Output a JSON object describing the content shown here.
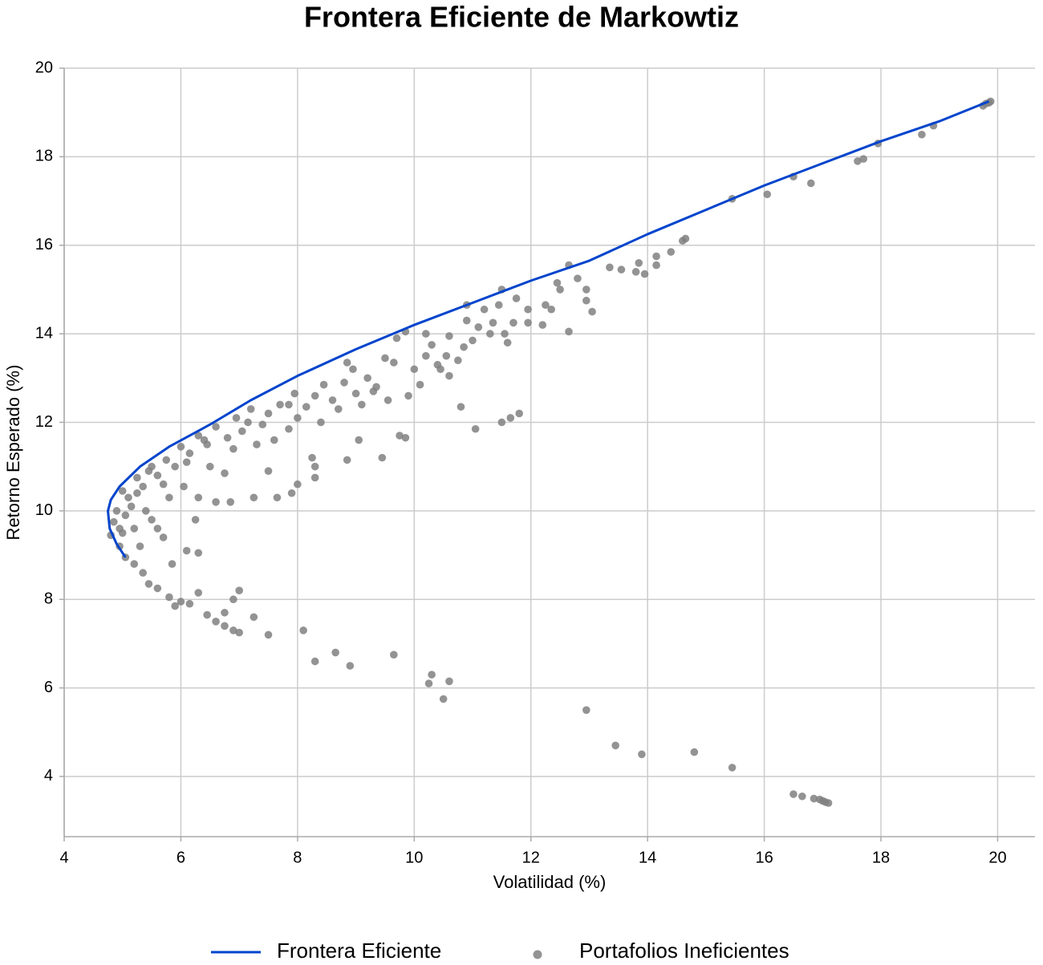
{
  "chart_data": {
    "type": "scatter",
    "title": "Frontera Eficiente de Markowtiz",
    "x_label": "Volatilidad (%)",
    "y_label": "Retorno Esperado (%)",
    "xlim": [
      4,
      20.64
    ],
    "ylim": [
      2.64,
      20
    ],
    "xticks": [
      4,
      6,
      8,
      10,
      12,
      14,
      16,
      18,
      20
    ],
    "yticks": [
      4,
      6,
      8,
      10,
      12,
      14,
      16,
      18,
      20
    ],
    "grid": true,
    "legend": "bottom",
    "series": [
      {
        "name": "Frontera Eficiente",
        "type": "line",
        "color": "#0044cc",
        "x": [
          5.05,
          4.9,
          4.78,
          4.75,
          4.8,
          4.95,
          5.3,
          5.8,
          6.5,
          7.2,
          8,
          9,
          10,
          11,
          12,
          13,
          14,
          15,
          16,
          17,
          18,
          19,
          19.85
        ],
        "values": [
          8.95,
          9.25,
          9.6,
          10.0,
          10.25,
          10.55,
          11.0,
          11.45,
          11.95,
          12.5,
          13.05,
          13.65,
          14.2,
          14.7,
          15.2,
          15.65,
          16.25,
          16.8,
          17.35,
          17.85,
          18.35,
          18.8,
          19.25
        ]
      },
      {
        "name": "Portafolios Ineficientes",
        "type": "scatter",
        "color": "#808080",
        "x": [
          19.75,
          19.8,
          19.85,
          19.88,
          18.9,
          18.7,
          17.95,
          17.7,
          17.6,
          16.8,
          16.5,
          16.05,
          15.45,
          14.65,
          14.6,
          14.4,
          14.15,
          14.15,
          13.95,
          13.85,
          13.8,
          13.55,
          13.35,
          13.05,
          12.95,
          12.95,
          12.8,
          12.65,
          12.65,
          12.45,
          12.5,
          12.35,
          12.25,
          12.2,
          11.95,
          11.95,
          11.75,
          11.7,
          11.55,
          11.5,
          11.45,
          11.35,
          11.3,
          11.2,
          11.1,
          11.0,
          10.9,
          10.9,
          10.85,
          10.75,
          10.6,
          10.55,
          10.45,
          10.3,
          10.2,
          10.0,
          9.85,
          9.9,
          9.65,
          9.5,
          9.35,
          9.2,
          9.0,
          8.95,
          8.8,
          8.6,
          8.45,
          8.3,
          8.15,
          8.0,
          7.85,
          7.7,
          7.5,
          7.4,
          7.2,
          7.05,
          6.95,
          6.8,
          6.6,
          6.45,
          6.3,
          6.15,
          6.0,
          5.9,
          5.75,
          5.6,
          5.5,
          5.35,
          5.25,
          5.1,
          5.0,
          4.9,
          4.85,
          4.8,
          4.95,
          5.05,
          5.2,
          5.35,
          5.45,
          5.6,
          5.8,
          6.0,
          5.9,
          6.15,
          6.3,
          6.45,
          6.6,
          6.75,
          6.9,
          7.0,
          6.75,
          6.9,
          7.0,
          7.25,
          7.5,
          8.1,
          8.3,
          8.65,
          8.9,
          9.65,
          10.25,
          10.3,
          10.5,
          10.6,
          12.95,
          13.45,
          13.9,
          14.8,
          15.45,
          16.5,
          16.65,
          16.85,
          16.95,
          17.0,
          17.05,
          17.1,
          10.8,
          11.05,
          11.5,
          11.65,
          11.8,
          9.75,
          9.85,
          9.45,
          9.05,
          8.85,
          8.3,
          8.3,
          8.0,
          7.9,
          7.65,
          7.25,
          6.85,
          6.6,
          6.3,
          6.25,
          6.3,
          6.1,
          5.85,
          5.7,
          6.05,
          6.75,
          7.5,
          8.25,
          9.55,
          10.1,
          10.6,
          7.85,
          8.7,
          9.1,
          7.3,
          6.5,
          5.8,
          5.4,
          5.2,
          5.0,
          5.5,
          5.3,
          5.6,
          5.15,
          5.7,
          6.1,
          6.9,
          7.6,
          8.4,
          9.3,
          10.4,
          11.6,
          10.2,
          9.7,
          8.85,
          7.95,
          7.15,
          6.4,
          5.45,
          5.05,
          4.95,
          5.25
        ],
        "values": [
          19.15,
          19.2,
          19.22,
          19.25,
          18.7,
          18.5,
          18.3,
          17.95,
          17.9,
          17.4,
          17.55,
          17.15,
          17.05,
          16.15,
          16.1,
          15.85,
          15.75,
          15.55,
          15.35,
          15.6,
          15.4,
          15.45,
          15.5,
          14.5,
          14.75,
          15.0,
          15.25,
          15.55,
          14.05,
          15.15,
          15.0,
          14.55,
          14.65,
          14.2,
          14.25,
          14.55,
          14.8,
          14.25,
          14.0,
          15.0,
          14.65,
          14.25,
          14.0,
          14.55,
          14.15,
          13.85,
          14.65,
          14.3,
          13.7,
          13.4,
          13.95,
          13.5,
          13.2,
          13.75,
          13.5,
          13.2,
          14.05,
          12.6,
          13.35,
          13.45,
          12.8,
          13.0,
          12.65,
          13.2,
          12.9,
          12.5,
          12.85,
          12.6,
          12.35,
          12.1,
          11.85,
          12.4,
          12.2,
          11.95,
          12.3,
          11.8,
          12.1,
          11.65,
          11.9,
          11.5,
          11.7,
          11.3,
          11.45,
          11.0,
          11.15,
          10.8,
          11.0,
          10.55,
          10.75,
          10.3,
          10.45,
          10.0,
          9.75,
          9.45,
          9.2,
          8.95,
          8.8,
          8.6,
          8.35,
          8.25,
          8.05,
          7.95,
          7.85,
          7.9,
          8.15,
          7.65,
          7.5,
          7.4,
          7.3,
          7.25,
          7.7,
          8.0,
          8.2,
          7.6,
          7.2,
          7.3,
          6.6,
          6.8,
          6.5,
          6.75,
          6.1,
          6.3,
          5.75,
          6.15,
          5.5,
          4.7,
          4.5,
          4.55,
          4.2,
          3.6,
          3.55,
          3.5,
          3.48,
          3.45,
          3.42,
          3.4,
          12.35,
          11.85,
          12.0,
          12.1,
          12.2,
          11.7,
          11.65,
          11.2,
          11.6,
          11.15,
          11.0,
          10.75,
          10.6,
          10.4,
          10.3,
          10.3,
          10.2,
          10.2,
          10.3,
          9.8,
          9.05,
          9.1,
          8.8,
          9.4,
          10.55,
          10.85,
          10.9,
          11.2,
          12.5,
          12.85,
          13.05,
          12.4,
          12.3,
          12.4,
          11.5,
          11.0,
          10.3,
          10.0,
          9.6,
          9.5,
          9.8,
          9.2,
          9.6,
          10.1,
          10.6,
          11.1,
          11.4,
          11.6,
          12.0,
          12.7,
          13.3,
          13.8,
          14.0,
          13.9,
          13.35,
          12.65,
          12.0,
          11.6,
          10.9,
          9.9,
          9.6,
          10.4
        ]
      }
    ]
  }
}
